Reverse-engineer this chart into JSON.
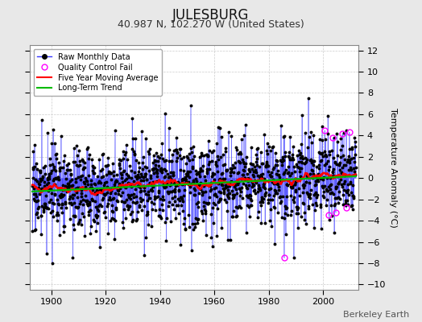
{
  "title": "JULESBURG",
  "subtitle": "40.987 N, 102.270 W (United States)",
  "ylabel": "Temperature Anomaly (°C)",
  "credit": "Berkeley Earth",
  "year_start": 1893,
  "year_end": 2011,
  "ylim": [
    -10.5,
    12.5
  ],
  "yticks": [
    -10,
    -8,
    -6,
    -4,
    -2,
    0,
    2,
    4,
    6,
    8,
    10,
    12
  ],
  "xticks": [
    1900,
    1920,
    1940,
    1960,
    1980,
    2000
  ],
  "bg_color": "#e8e8e8",
  "plot_bg_color": "#ffffff",
  "raw_line_color": "#3333ff",
  "raw_dot_color": "#000000",
  "qc_color": "#ff00ff",
  "moving_avg_color": "#ff0000",
  "trend_color": "#00bb00",
  "trend_slope": 0.012,
  "trend_intercept": -0.55,
  "moving_avg_window": 60,
  "title_fontsize": 12,
  "subtitle_fontsize": 9,
  "tick_fontsize": 8,
  "label_fontsize": 8,
  "credit_fontsize": 8,
  "noise_std": 2.0
}
